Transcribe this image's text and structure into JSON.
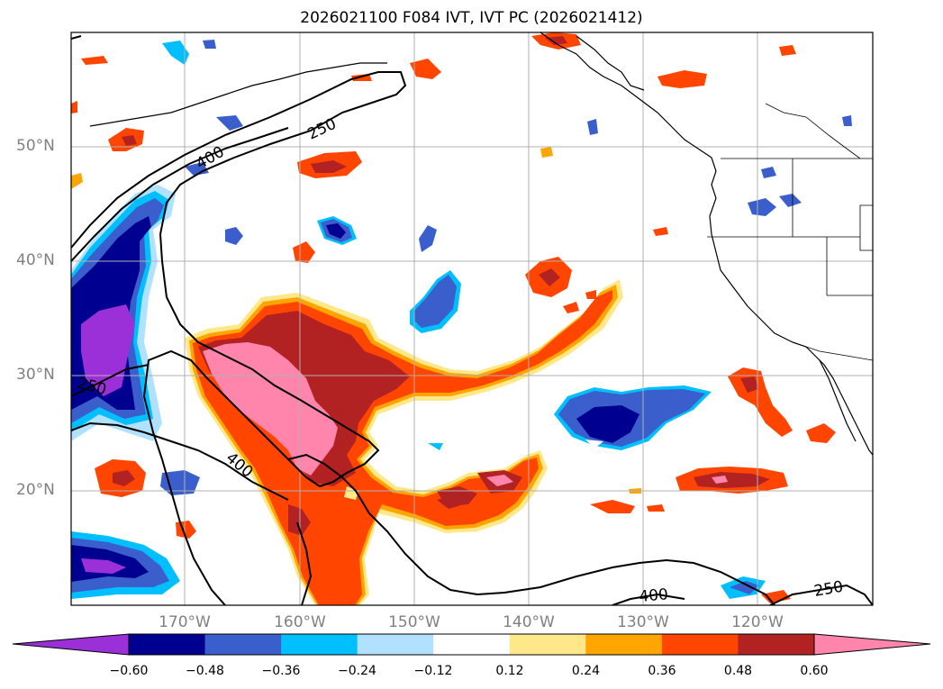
{
  "map": {
    "title": "2026021100 F084 IVT, IVT PC (2026021412)",
    "contour_labels": {
      "c250_north": "250",
      "c400_north": "400",
      "c250_west": "250",
      "c400_center": "400",
      "c400_south": "400",
      "c250_southeast": "250"
    },
    "lat_labels": [
      "50°N",
      "40°N",
      "30°N",
      "20°N"
    ],
    "lon_labels": [
      "170°W",
      "160°W",
      "150°W",
      "140°W",
      "130°W",
      "120°W"
    ]
  },
  "colorbar": {
    "ticks": [
      "−0.60",
      "−0.48",
      "−0.36",
      "−0.24",
      "−0.12",
      "0.12",
      "0.24",
      "0.36",
      "0.48",
      "0.60"
    ],
    "colors": [
      "#9b30d8",
      "#000090",
      "#3a5fcd",
      "#00bfff",
      "#b0e2ff",
      "#ffffff",
      "#ffe88a",
      "#ffa500",
      "#ff4500",
      "#b22222",
      "#ff85ad"
    ]
  },
  "palette": {
    "neg_extreme": "#9b30d8",
    "neg_strong": "#000090",
    "neg_mid": "#3a5fcd",
    "neg_weak": "#00bfff",
    "neg_faint": "#b0e2ff",
    "pos_faint": "#ffe88a",
    "pos_weak": "#ffa500",
    "pos_mid": "#ff4500",
    "pos_strong": "#b22222",
    "pos_extreme": "#ff85ad",
    "gridline": "#b0b0b0",
    "axis_label": "#808080"
  }
}
